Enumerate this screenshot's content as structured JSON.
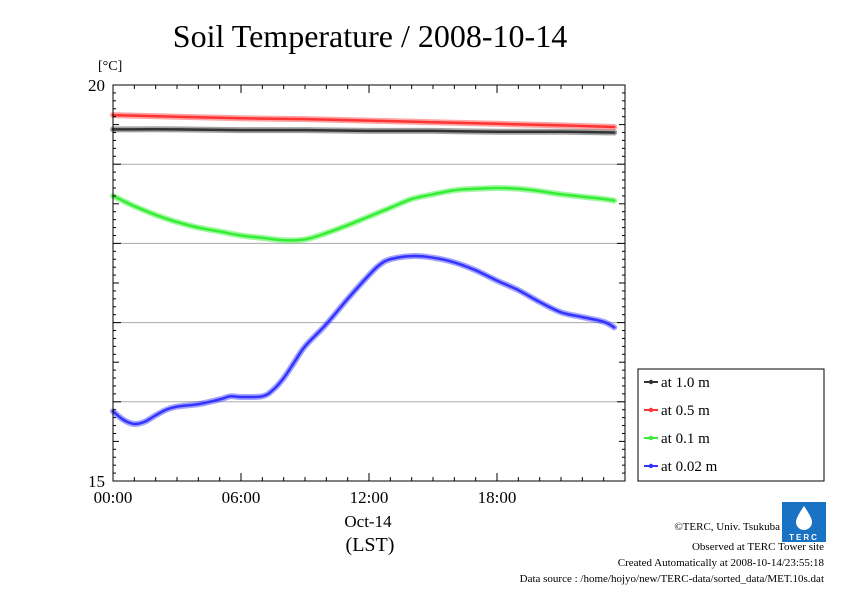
{
  "chart_data": {
    "type": "line",
    "title": "Soil Temperature / 2008-10-14",
    "ylabel": "[°C]",
    "xlabel_date": "Oct-14",
    "xlabel_unit": "(LST)",
    "ylim": [
      15,
      20
    ],
    "xlim": [
      0,
      24
    ],
    "y_ticks": [
      {
        "value": 20,
        "label": "20"
      },
      {
        "value": 15,
        "label": "15"
      }
    ],
    "x_ticks": [
      {
        "value": 0,
        "label": "00:00"
      },
      {
        "value": 6,
        "label": "06:00"
      },
      {
        "value": 12,
        "label": "12:00"
      },
      {
        "value": 18,
        "label": "18:00"
      }
    ],
    "grid": "horizontal",
    "legend_position": "right",
    "series": [
      {
        "name": "at 1.0 m",
        "color": "#333333",
        "points": [
          [
            0,
            19.44
          ],
          [
            3,
            19.44
          ],
          [
            6,
            19.43
          ],
          [
            9,
            19.43
          ],
          [
            12,
            19.42
          ],
          [
            15,
            19.42
          ],
          [
            18,
            19.41
          ],
          [
            21,
            19.41
          ],
          [
            23.5,
            19.4
          ]
        ]
      },
      {
        "name": "at 0.5 m",
        "color": "#ff3333",
        "points": [
          [
            0,
            19.62
          ],
          [
            3,
            19.6
          ],
          [
            6,
            19.58
          ],
          [
            9,
            19.57
          ],
          [
            12,
            19.55
          ],
          [
            15,
            19.53
          ],
          [
            18,
            19.51
          ],
          [
            21,
            19.49
          ],
          [
            23.5,
            19.47
          ]
        ]
      },
      {
        "name": "at 0.1 m",
        "color": "#33ee33",
        "points": [
          [
            0,
            18.6
          ],
          [
            1,
            18.47
          ],
          [
            2,
            18.36
          ],
          [
            3,
            18.27
          ],
          [
            4,
            18.2
          ],
          [
            5,
            18.15
          ],
          [
            6,
            18.1
          ],
          [
            7,
            18.07
          ],
          [
            8,
            18.04
          ],
          [
            9,
            18.05
          ],
          [
            10,
            18.13
          ],
          [
            11,
            18.23
          ],
          [
            12,
            18.34
          ],
          [
            13,
            18.45
          ],
          [
            14,
            18.56
          ],
          [
            15,
            18.62
          ],
          [
            16,
            18.67
          ],
          [
            17,
            18.69
          ],
          [
            18,
            18.7
          ],
          [
            19,
            18.69
          ],
          [
            20,
            18.66
          ],
          [
            21,
            18.62
          ],
          [
            22,
            18.59
          ],
          [
            23,
            18.56
          ],
          [
            23.5,
            18.54
          ]
        ]
      },
      {
        "name": "at 0.02 m",
        "color": "#3333ff",
        "points": [
          [
            0,
            15.88
          ],
          [
            0.5,
            15.77
          ],
          [
            1,
            15.72
          ],
          [
            1.5,
            15.75
          ],
          [
            2,
            15.83
          ],
          [
            2.5,
            15.9
          ],
          [
            3,
            15.94
          ],
          [
            4,
            15.97
          ],
          [
            5,
            16.03
          ],
          [
            5.5,
            16.07
          ],
          [
            6,
            16.06
          ],
          [
            7,
            16.07
          ],
          [
            7.5,
            16.15
          ],
          [
            8,
            16.3
          ],
          [
            8.5,
            16.5
          ],
          [
            9,
            16.7
          ],
          [
            10,
            16.98
          ],
          [
            11,
            17.3
          ],
          [
            12,
            17.6
          ],
          [
            12.5,
            17.73
          ],
          [
            13,
            17.8
          ],
          [
            14,
            17.84
          ],
          [
            15,
            17.82
          ],
          [
            16,
            17.76
          ],
          [
            17,
            17.66
          ],
          [
            18,
            17.53
          ],
          [
            19,
            17.41
          ],
          [
            20,
            17.26
          ],
          [
            21,
            17.13
          ],
          [
            22,
            17.07
          ],
          [
            23,
            17.01
          ],
          [
            23.5,
            16.94
          ]
        ]
      }
    ]
  },
  "footer": {
    "copyright": "©TERC, Univ. Tsukuba",
    "observed": "Observed at TERC Tower site",
    "created": "Created Automatically at 2008-10-14/23:55:18",
    "source": "Data source : /home/hojyo/new/TERC-data/sorted_data/MET.10s.dat",
    "logo_text": "TERC"
  }
}
